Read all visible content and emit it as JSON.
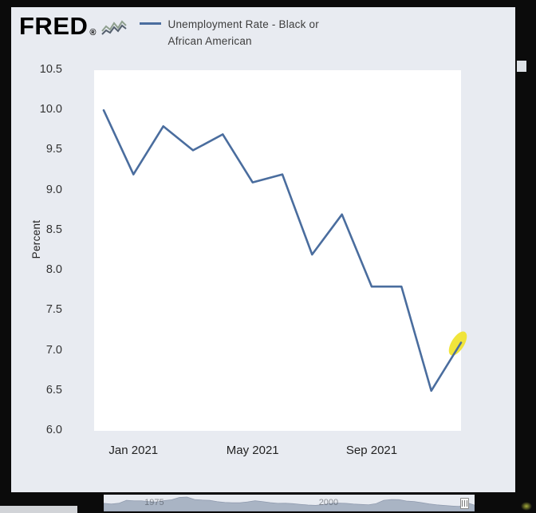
{
  "colors": {
    "frame_background": "#0b0b0b",
    "page_background": "#e8ebf1",
    "plot_background": "#ffffff",
    "line": "#4a6d9e",
    "highlight": "#f0e32a",
    "navigator_fill": "#a9b4c4",
    "text": "#333333"
  },
  "header": {
    "logo": "FRED",
    "logo_mark": "®",
    "legend_line1": "Unemployment Rate - Black or",
    "legend_line2": "African American"
  },
  "chart_data": {
    "type": "line",
    "title": "Unemployment Rate - Black or African American",
    "ylabel": "Percent",
    "ylim": [
      6.0,
      10.5
    ],
    "yticks": [
      10.5,
      10.0,
      9.5,
      9.0,
      8.5,
      8.0,
      7.5,
      7.0,
      6.5,
      6.0
    ],
    "x": [
      "Dec 2020",
      "Jan 2021",
      "Feb 2021",
      "Mar 2021",
      "Apr 2021",
      "May 2021",
      "Jun 2021",
      "Jul 2021",
      "Aug 2021",
      "Sep 2021",
      "Oct 2021",
      "Nov 2021",
      "Dec 2021"
    ],
    "values": [
      10.0,
      9.2,
      9.8,
      9.5,
      9.7,
      9.1,
      9.2,
      8.2,
      8.7,
      7.8,
      7.8,
      6.5,
      7.1
    ],
    "xticks": [
      "Jan 2021",
      "May 2021",
      "Sep 2021"
    ],
    "xtick_indices": [
      1,
      5,
      9
    ],
    "line_color": "#4a6d9e",
    "grid": false,
    "legend_position": "top",
    "highlight": {
      "x": "Dec 2021",
      "value": 7.1,
      "color": "#f0e32a"
    }
  },
  "navigator": {
    "type": "area",
    "values": [
      10.4,
      9.4,
      10.5,
      14.8,
      14.0,
      14.0,
      12.8,
      12.3,
      14.3,
      15.6,
      18.9,
      19.5,
      16.0,
      15.1,
      14.8,
      13.0,
      11.7,
      11.4,
      11.4,
      12.5,
      14.2,
      13.0,
      11.5,
      10.4,
      10.5,
      10.0,
      8.9,
      8.0,
      7.6,
      8.6,
      10.2,
      10.8,
      10.4,
      9.5,
      8.9,
      8.3,
      10.1,
      14.8,
      16.0,
      15.8,
      13.8,
      13.1,
      11.5,
      9.6,
      8.4,
      7.5,
      6.6,
      6.1,
      11.4,
      7.9
    ],
    "labels": [
      {
        "text": "1975",
        "left_pct": 11
      },
      {
        "text": "2000",
        "left_pct": 58
      }
    ]
  }
}
